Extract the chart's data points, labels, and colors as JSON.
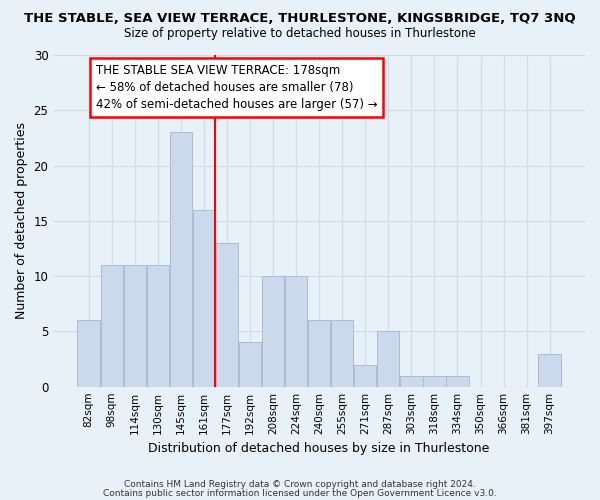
{
  "title_line1": "THE STABLE, SEA VIEW TERRACE, THURLESTONE, KINGSBRIDGE, TQ7 3NQ",
  "title_line2": "Size of property relative to detached houses in Thurlestone",
  "xlabel": "Distribution of detached houses by size in Thurlestone",
  "ylabel": "Number of detached properties",
  "bar_labels": [
    "82sqm",
    "98sqm",
    "114sqm",
    "130sqm",
    "145sqm",
    "161sqm",
    "177sqm",
    "192sqm",
    "208sqm",
    "224sqm",
    "240sqm",
    "255sqm",
    "271sqm",
    "287sqm",
    "303sqm",
    "318sqm",
    "334sqm",
    "350sqm",
    "366sqm",
    "381sqm",
    "397sqm"
  ],
  "bar_values": [
    6,
    11,
    11,
    11,
    23,
    16,
    13,
    4,
    10,
    10,
    6,
    6,
    2,
    5,
    1,
    1,
    1,
    0,
    0,
    0,
    3
  ],
  "bar_color": "#ccd9ed",
  "bar_edgecolor": "#aabdd8",
  "vline_index": 6,
  "annotation_text_line1": "THE STABLE SEA VIEW TERRACE: 178sqm",
  "annotation_text_line2": "← 58% of detached houses are smaller (78)",
  "annotation_text_line3": "42% of semi-detached houses are larger (57) →",
  "annotation_box_color": "white",
  "annotation_box_edgecolor": "red",
  "vline_color": "red",
  "ylim": [
    0,
    30
  ],
  "yticks": [
    0,
    5,
    10,
    15,
    20,
    25,
    30
  ],
  "grid_color": "#d0dcea",
  "background_color": "#e8f0f8",
  "footer_line1": "Contains HM Land Registry data © Crown copyright and database right 2024.",
  "footer_line2": "Contains public sector information licensed under the Open Government Licence v3.0."
}
